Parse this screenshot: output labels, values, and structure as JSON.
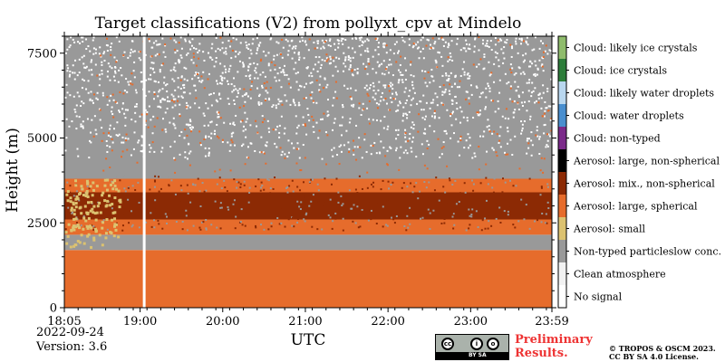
{
  "chart_data": {
    "type": "heatmap",
    "title": "Target classifications (V2) from pollyxt_cpv at Mindelo",
    "xlabel": "UTC",
    "ylabel": "Height (m)",
    "x_tick_labels": [
      "18:05",
      "19:00",
      "20:00",
      "21:00",
      "22:00",
      "23:00",
      "23:59"
    ],
    "x_range_minutes": [
      1085,
      1439
    ],
    "x_tick_minutes": [
      1085,
      1140,
      1200,
      1260,
      1320,
      1380,
      1439
    ],
    "y_ticks": [
      0,
      2500,
      5000,
      7500
    ],
    "y_tick_labels": [
      "0",
      "2500",
      "5000",
      "7500"
    ],
    "ylim": [
      0,
      8000
    ],
    "grid": false,
    "legend_position": "right colorbar",
    "categories": [
      {
        "label": "No signal",
        "color": "#ffffff"
      },
      {
        "label": "Clean atmosphere",
        "color": "#f2f2f2"
      },
      {
        "label": "Non-typed particleslow conc.",
        "color": "#999999"
      },
      {
        "label": "Aerosol: small",
        "color": "#dcc270"
      },
      {
        "label": "Aerosol: large, spherical",
        "color": "#e66c2c"
      },
      {
        "label": "Aerosol: mix., non-spherical",
        "color": "#8c2a04"
      },
      {
        "label": "Aerosol: large, non-spherical",
        "color": "#000000"
      },
      {
        "label": "Cloud: non-typed",
        "color": "#7b2a8a"
      },
      {
        "label": "Cloud: water droplets",
        "color": "#4a8fcf"
      },
      {
        "label": "Cloud: likely water droplets",
        "color": "#b9d7ef"
      },
      {
        "label": "Cloud: ice crystals",
        "color": "#2d7d3a"
      },
      {
        "label": "Cloud: likely ice crystals",
        "color": "#8fbc6c"
      }
    ],
    "layers": [
      {
        "category": "Aerosol: large, spherical",
        "from_m": 0,
        "to_m": 1700
      },
      {
        "category": "Non-typed particleslow conc.",
        "from_m": 1700,
        "to_m": 2150
      },
      {
        "category": "Aerosol: large, spherical",
        "from_m": 2150,
        "to_m": 2600
      },
      {
        "category": "Aerosol: mix., non-spherical",
        "from_m": 2600,
        "to_m": 3400
      },
      {
        "category": "Aerosol: large, spherical",
        "from_m": 3400,
        "to_m": 3800
      },
      {
        "category": "Non-typed particleslow conc.",
        "from_m": 3800,
        "to_m": 8000
      }
    ]
  },
  "footer": {
    "date": "2022-09-24",
    "version": "Version: 3.6",
    "preliminary_line1": "Preliminary",
    "preliminary_line2": "Results.",
    "copyright_line1": "© TROPOS & OSCM 2023.",
    "copyright_line2": "CC BY SA 4.0 License.",
    "license_badge_text": "BY   SA",
    "license_badge_cc": "cc"
  }
}
